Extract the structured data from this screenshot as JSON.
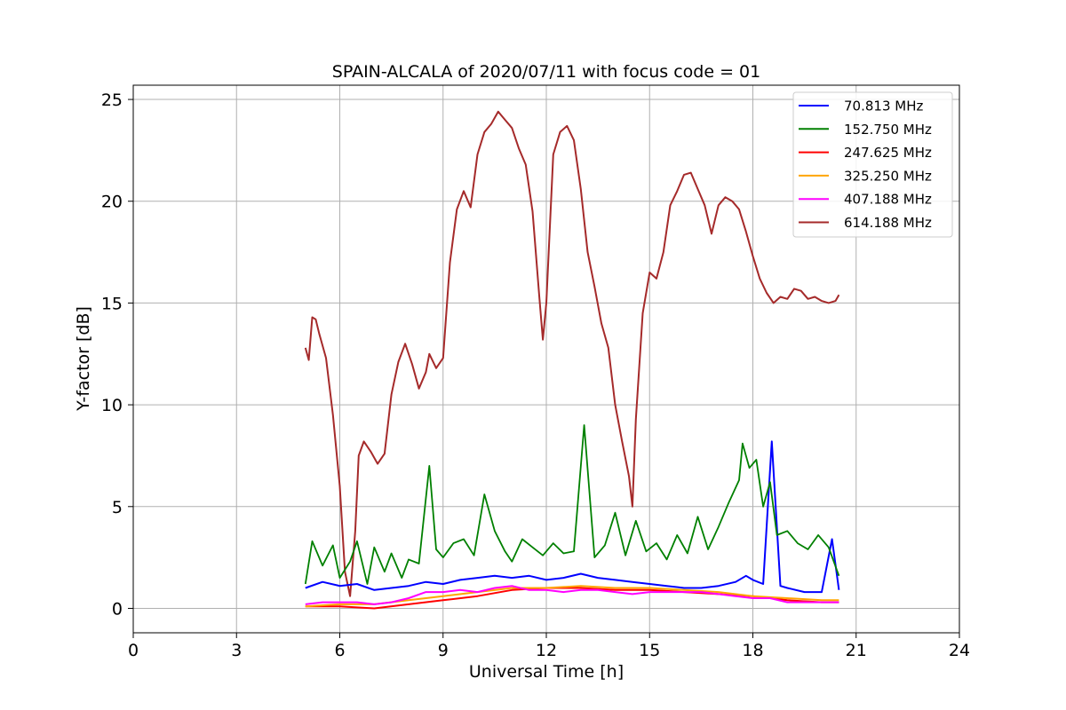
{
  "chart_data": {
    "type": "line",
    "title": "SPAIN-ALCALA of 2020/07/11 with focus code = 01",
    "xlabel": "Universal Time [h]",
    "ylabel": "Y-factor [dB]",
    "xlim": [
      0,
      24
    ],
    "ylim": [
      -1.2,
      25.7
    ],
    "xticks": [
      0,
      3,
      6,
      9,
      12,
      15,
      18,
      21,
      24
    ],
    "xtick_labels": [
      "0",
      "3",
      "6",
      "9",
      "12",
      "15",
      "18",
      "21",
      "24"
    ],
    "yticks": [
      0,
      5,
      10,
      15,
      20,
      25
    ],
    "ytick_labels": [
      "0",
      "5",
      "10",
      "15",
      "20",
      "25"
    ],
    "grid": true,
    "legend_position": "top-right",
    "series": [
      {
        "name": " 70.813 MHz",
        "color": "#0000ff",
        "x": [
          5.0,
          5.5,
          6.0,
          6.5,
          7.0,
          7.5,
          8.0,
          8.5,
          9.0,
          9.5,
          10.0,
          10.5,
          11.0,
          11.5,
          12.0,
          12.5,
          13.0,
          13.5,
          14.0,
          14.5,
          15.0,
          15.5,
          16.0,
          16.5,
          17.0,
          17.5,
          17.8,
          18.0,
          18.3,
          18.55,
          18.8,
          19.0,
          19.5,
          20.0,
          20.3,
          20.5
        ],
        "y": [
          1.0,
          1.3,
          1.1,
          1.2,
          0.9,
          1.0,
          1.1,
          1.3,
          1.2,
          1.4,
          1.5,
          1.6,
          1.5,
          1.6,
          1.4,
          1.5,
          1.7,
          1.5,
          1.4,
          1.3,
          1.2,
          1.1,
          1.0,
          1.0,
          1.1,
          1.3,
          1.6,
          1.4,
          1.2,
          8.2,
          1.1,
          1.0,
          0.8,
          0.8,
          3.4,
          0.9
        ]
      },
      {
        "name": "152.750 MHz",
        "color": "#008000",
        "x": [
          5.0,
          5.2,
          5.5,
          5.8,
          6.0,
          6.3,
          6.5,
          6.8,
          7.0,
          7.3,
          7.5,
          7.8,
          8.0,
          8.3,
          8.6,
          8.8,
          9.0,
          9.3,
          9.6,
          9.9,
          10.2,
          10.5,
          10.8,
          11.0,
          11.3,
          11.6,
          11.9,
          12.2,
          12.5,
          12.8,
          13.1,
          13.4,
          13.7,
          14.0,
          14.3,
          14.6,
          14.9,
          15.2,
          15.5,
          15.8,
          16.1,
          16.4,
          16.7,
          17.0,
          17.3,
          17.6,
          17.7,
          17.9,
          18.1,
          18.3,
          18.5,
          18.7,
          19.0,
          19.3,
          19.6,
          19.9,
          20.2,
          20.5
        ],
        "y": [
          1.2,
          3.3,
          2.1,
          3.1,
          1.5,
          2.3,
          3.3,
          1.2,
          3.0,
          1.8,
          2.7,
          1.5,
          2.4,
          2.2,
          7.0,
          2.9,
          2.5,
          3.2,
          3.4,
          2.6,
          5.6,
          3.8,
          2.8,
          2.3,
          3.4,
          3.0,
          2.6,
          3.2,
          2.7,
          2.8,
          9.0,
          2.5,
          3.1,
          4.7,
          2.6,
          4.3,
          2.8,
          3.2,
          2.4,
          3.6,
          2.7,
          4.5,
          2.9,
          4.0,
          5.2,
          6.3,
          8.1,
          6.9,
          7.3,
          5.0,
          6.2,
          3.6,
          3.8,
          3.2,
          2.9,
          3.6,
          3.0,
          1.6
        ]
      },
      {
        "name": "247.625 MHz",
        "color": "#ff0000",
        "x": [
          5.0,
          6.0,
          7.0,
          8.0,
          9.0,
          10.0,
          11.0,
          12.0,
          13.0,
          14.0,
          15.0,
          16.0,
          17.0,
          18.0,
          19.0,
          20.0,
          20.5
        ],
        "y": [
          0.1,
          0.1,
          0.0,
          0.2,
          0.4,
          0.6,
          0.9,
          1.0,
          1.0,
          0.9,
          0.9,
          0.8,
          0.7,
          0.6,
          0.4,
          0.3,
          0.3
        ]
      },
      {
        "name": "325.250 MHz",
        "color": "#ffa500",
        "x": [
          5.0,
          6.0,
          7.0,
          8.0,
          9.0,
          10.0,
          11.0,
          12.0,
          13.0,
          14.0,
          15.0,
          16.0,
          17.0,
          18.0,
          19.0,
          20.0,
          20.5
        ],
        "y": [
          0.1,
          0.2,
          0.2,
          0.4,
          0.6,
          0.8,
          1.0,
          1.0,
          1.1,
          1.0,
          1.0,
          0.9,
          0.8,
          0.6,
          0.5,
          0.4,
          0.4
        ]
      },
      {
        "name": "407.188 MHz",
        "color": "#ff00ff",
        "x": [
          5.0,
          5.5,
          6.0,
          6.5,
          7.0,
          7.5,
          8.0,
          8.5,
          9.0,
          9.5,
          10.0,
          10.5,
          11.0,
          11.5,
          12.0,
          12.5,
          13.0,
          13.5,
          14.0,
          14.5,
          15.0,
          15.5,
          16.0,
          16.5,
          17.0,
          17.5,
          18.0,
          18.5,
          19.0,
          19.5,
          20.0,
          20.5
        ],
        "y": [
          0.2,
          0.3,
          0.3,
          0.3,
          0.2,
          0.3,
          0.5,
          0.8,
          0.8,
          0.9,
          0.8,
          1.0,
          1.1,
          0.9,
          0.9,
          0.8,
          0.9,
          0.9,
          0.8,
          0.7,
          0.8,
          0.8,
          0.8,
          0.8,
          0.7,
          0.6,
          0.5,
          0.5,
          0.3,
          0.3,
          0.3,
          0.3
        ]
      },
      {
        "name": "614.188 MHz",
        "color": "#a52a2a",
        "x": [
          5.0,
          5.1,
          5.2,
          5.3,
          5.4,
          5.6,
          5.8,
          6.0,
          6.15,
          6.3,
          6.45,
          6.55,
          6.7,
          6.9,
          7.1,
          7.3,
          7.5,
          7.7,
          7.9,
          8.1,
          8.3,
          8.5,
          8.6,
          8.8,
          9.0,
          9.2,
          9.4,
          9.6,
          9.8,
          10.0,
          10.2,
          10.4,
          10.6,
          10.8,
          11.0,
          11.2,
          11.4,
          11.6,
          11.8,
          11.9,
          12.0,
          12.2,
          12.4,
          12.6,
          12.8,
          13.0,
          13.2,
          13.4,
          13.6,
          13.8,
          14.0,
          14.2,
          14.4,
          14.5,
          14.6,
          14.8,
          15.0,
          15.2,
          15.4,
          15.6,
          15.8,
          16.0,
          16.2,
          16.4,
          16.6,
          16.8,
          17.0,
          17.2,
          17.4,
          17.6,
          17.8,
          18.0,
          18.2,
          18.4,
          18.6,
          18.8,
          19.0,
          19.2,
          19.4,
          19.6,
          19.8,
          20.0,
          20.2,
          20.4,
          20.5
        ],
        "y": [
          12.8,
          12.2,
          14.3,
          14.2,
          13.5,
          12.3,
          9.5,
          6.0,
          1.8,
          0.6,
          3.8,
          7.5,
          8.2,
          7.7,
          7.1,
          7.6,
          10.5,
          12.1,
          13.0,
          12.0,
          10.8,
          11.6,
          12.5,
          11.8,
          12.3,
          17.0,
          19.6,
          20.5,
          19.7,
          22.3,
          23.4,
          23.8,
          24.4,
          24.0,
          23.6,
          22.6,
          21.8,
          19.5,
          15.2,
          13.2,
          15.0,
          22.3,
          23.4,
          23.7,
          23.0,
          20.6,
          17.5,
          15.8,
          14.0,
          12.8,
          10.0,
          8.2,
          6.5,
          5.0,
          9.3,
          14.5,
          16.5,
          16.2,
          17.5,
          19.8,
          20.5,
          21.3,
          21.4,
          20.6,
          19.8,
          18.4,
          19.8,
          20.2,
          20.0,
          19.6,
          18.5,
          17.3,
          16.2,
          15.5,
          15.0,
          15.3,
          15.2,
          15.7,
          15.6,
          15.2,
          15.3,
          15.1,
          15.0,
          15.1,
          15.4
        ]
      }
    ]
  }
}
